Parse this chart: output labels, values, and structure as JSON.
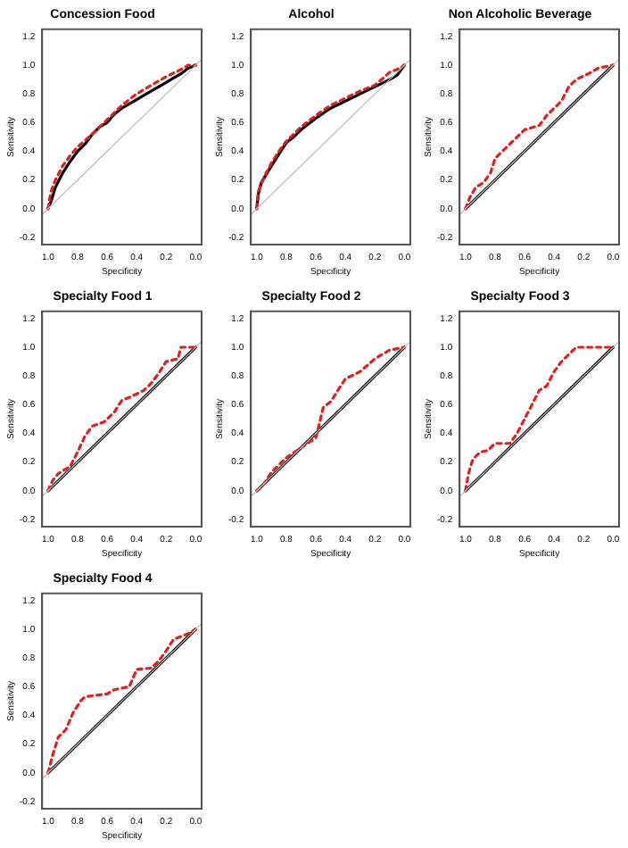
{
  "chart_data": [
    {
      "type": "line",
      "title": "Concession Food",
      "xlabel": "Specificity",
      "ylabel": "Sensitivity",
      "xlim": [
        1.04,
        -0.04
      ],
      "ylim": [
        -0.25,
        1.25
      ],
      "xticks": [
        {
          "value": 1,
          "label": "1.0"
        },
        {
          "value": 0.8,
          "label": "0.8"
        },
        {
          "value": 0.6,
          "label": "0.6"
        },
        {
          "value": 0.4,
          "label": "0.4"
        },
        {
          "value": 0.2,
          "label": "0.2"
        },
        {
          "value": 0,
          "label": "0.0"
        }
      ],
      "yticks": [
        {
          "value": -0.2,
          "label": "-0.2"
        },
        {
          "value": 0,
          "label": "0.0"
        },
        {
          "value": 0.2,
          "label": "0.2"
        },
        {
          "value": 0.4,
          "label": "0.4"
        },
        {
          "value": 0.6,
          "label": "0.6"
        },
        {
          "value": 0.8,
          "label": "0.8"
        },
        {
          "value": 1,
          "label": "1.0"
        },
        {
          "value": 1.2,
          "label": "1.2"
        }
      ],
      "marker": "none",
      "grid": false,
      "legend": false,
      "series": [
        {
          "color": "#bebebe",
          "line_style": "solid",
          "x": [
            1.04,
            -0.04
          ],
          "values": [
            -0.04,
            1.04
          ]
        },
        {
          "color": "#000000",
          "line_style": "solid",
          "x": [
            1,
            0.98,
            0.95,
            0.9,
            0.85,
            0.8,
            0.75,
            0.7,
            0.65,
            0.6,
            0.55,
            0.5,
            0.45,
            0.4,
            0.3,
            0.2,
            0.15,
            0.1,
            0.05,
            0
          ],
          "values": [
            0,
            0.05,
            0.15,
            0.25,
            0.33,
            0.4,
            0.45,
            0.52,
            0.57,
            0.6,
            0.66,
            0.7,
            0.73,
            0.76,
            0.82,
            0.88,
            0.91,
            0.94,
            0.98,
            1
          ]
        },
        {
          "color": "#df2020",
          "line_style": "dashed",
          "x": [
            1,
            0.98,
            0.95,
            0.9,
            0.85,
            0.8,
            0.7,
            0.6,
            0.5,
            0.4,
            0.3,
            0.2,
            0.1,
            0.05,
            0
          ],
          "values": [
            0,
            0.12,
            0.2,
            0.3,
            0.37,
            0.43,
            0.52,
            0.62,
            0.72,
            0.8,
            0.86,
            0.92,
            0.97,
            1,
            1
          ]
        }
      ]
    },
    {
      "type": "line",
      "title": "Alcohol",
      "xlabel": "Specificity",
      "ylabel": "Sensitivity",
      "xlim": [
        1.04,
        -0.04
      ],
      "ylim": [
        -0.25,
        1.25
      ],
      "xticks": [
        {
          "value": 1,
          "label": "1.0"
        },
        {
          "value": 0.8,
          "label": "0.8"
        },
        {
          "value": 0.6,
          "label": "0.6"
        },
        {
          "value": 0.4,
          "label": "0.4"
        },
        {
          "value": 0.2,
          "label": "0.2"
        },
        {
          "value": 0,
          "label": "0.0"
        }
      ],
      "yticks": [
        {
          "value": -0.2,
          "label": "-0.2"
        },
        {
          "value": 0,
          "label": "0.0"
        },
        {
          "value": 0.2,
          "label": "0.2"
        },
        {
          "value": 0.4,
          "label": "0.4"
        },
        {
          "value": 0.6,
          "label": "0.6"
        },
        {
          "value": 0.8,
          "label": "0.8"
        },
        {
          "value": 1,
          "label": "1.0"
        },
        {
          "value": 1.2,
          "label": "1.2"
        }
      ],
      "marker": "none",
      "grid": false,
      "legend": false,
      "series": [
        {
          "color": "#bebebe",
          "line_style": "solid",
          "x": [
            1.04,
            -0.04
          ],
          "values": [
            -0.04,
            1.04
          ]
        },
        {
          "color": "#000000",
          "line_style": "solid",
          "x": [
            1,
            0.99,
            0.97,
            0.93,
            0.9,
            0.85,
            0.8,
            0.75,
            0.7,
            0.6,
            0.5,
            0.4,
            0.3,
            0.2,
            0.1,
            0.05,
            0
          ],
          "values": [
            0,
            0.1,
            0.18,
            0.25,
            0.3,
            0.38,
            0.46,
            0.5,
            0.55,
            0.63,
            0.7,
            0.75,
            0.8,
            0.85,
            0.9,
            0.93,
            1
          ]
        },
        {
          "color": "#df2020",
          "line_style": "dashed",
          "x": [
            1,
            0.99,
            0.95,
            0.9,
            0.85,
            0.8,
            0.7,
            0.6,
            0.5,
            0.4,
            0.3,
            0.2,
            0.1,
            0.05,
            0
          ],
          "values": [
            0,
            0.12,
            0.22,
            0.32,
            0.4,
            0.47,
            0.57,
            0.65,
            0.72,
            0.77,
            0.82,
            0.86,
            0.95,
            0.97,
            1
          ]
        }
      ]
    },
    {
      "type": "line",
      "title": "Non Alcoholic Beverage",
      "xlabel": "Specificity",
      "ylabel": "Sensitivity",
      "xlim": [
        1.04,
        -0.04
      ],
      "ylim": [
        -0.25,
        1.25
      ],
      "xticks": [
        {
          "value": 1,
          "label": "1.0"
        },
        {
          "value": 0.8,
          "label": "0.8"
        },
        {
          "value": 0.6,
          "label": "0.6"
        },
        {
          "value": 0.4,
          "label": "0.4"
        },
        {
          "value": 0.2,
          "label": "0.2"
        },
        {
          "value": 0,
          "label": "0.0"
        }
      ],
      "yticks": [
        {
          "value": -0.2,
          "label": "-0.2"
        },
        {
          "value": 0,
          "label": "0.0"
        },
        {
          "value": 0.2,
          "label": "0.2"
        },
        {
          "value": 0.4,
          "label": "0.4"
        },
        {
          "value": 0.6,
          "label": "0.6"
        },
        {
          "value": 0.8,
          "label": "0.8"
        },
        {
          "value": 1,
          "label": "1.0"
        },
        {
          "value": 1.2,
          "label": "1.2"
        }
      ],
      "marker": "none",
      "grid": false,
      "legend": false,
      "series": [
        {
          "color": "#bebebe",
          "line_style": "solid",
          "x": [
            1.04,
            -0.04
          ],
          "values": [
            -0.04,
            1.04
          ]
        },
        {
          "color": "#000000",
          "line_style": "solid",
          "x": [
            1,
            0
          ],
          "values": [
            0,
            1
          ]
        },
        {
          "color": "#df2020",
          "line_style": "dashed",
          "x": [
            1,
            0.97,
            0.93,
            0.88,
            0.83,
            0.8,
            0.75,
            0.7,
            0.65,
            0.6,
            0.5,
            0.45,
            0.4,
            0.35,
            0.3,
            0.25,
            0.15,
            0.1,
            0
          ],
          "values": [
            0,
            0.08,
            0.15,
            0.18,
            0.25,
            0.35,
            0.4,
            0.45,
            0.5,
            0.55,
            0.58,
            0.65,
            0.7,
            0.75,
            0.85,
            0.9,
            0.95,
            0.98,
            1
          ]
        }
      ]
    },
    {
      "type": "line",
      "title": "Specialty Food 1",
      "xlabel": "Specificity",
      "ylabel": "Sensitivity",
      "xlim": [
        1.04,
        -0.04
      ],
      "ylim": [
        -0.25,
        1.25
      ],
      "xticks": [
        {
          "value": 1,
          "label": "1.0"
        },
        {
          "value": 0.8,
          "label": "0.8"
        },
        {
          "value": 0.6,
          "label": "0.6"
        },
        {
          "value": 0.4,
          "label": "0.4"
        },
        {
          "value": 0.2,
          "label": "0.2"
        },
        {
          "value": 0,
          "label": "0.0"
        }
      ],
      "yticks": [
        {
          "value": -0.2,
          "label": "-0.2"
        },
        {
          "value": 0,
          "label": "0.0"
        },
        {
          "value": 0.2,
          "label": "0.2"
        },
        {
          "value": 0.4,
          "label": "0.4"
        },
        {
          "value": 0.6,
          "label": "0.6"
        },
        {
          "value": 0.8,
          "label": "0.8"
        },
        {
          "value": 1,
          "label": "1.0"
        },
        {
          "value": 1.2,
          "label": "1.2"
        }
      ],
      "marker": "none",
      "grid": false,
      "legend": false,
      "series": [
        {
          "color": "#bebebe",
          "line_style": "solid",
          "x": [
            1.04,
            -0.04
          ],
          "values": [
            -0.04,
            1.04
          ]
        },
        {
          "color": "#000000",
          "line_style": "solid",
          "x": [
            1,
            0
          ],
          "values": [
            0,
            1
          ]
        },
        {
          "color": "#df2020",
          "line_style": "dashed",
          "x": [
            1,
            0.97,
            0.93,
            0.85,
            0.8,
            0.75,
            0.7,
            0.62,
            0.55,
            0.5,
            0.45,
            0.35,
            0.3,
            0.25,
            0.2,
            0.12,
            0.1,
            0
          ],
          "values": [
            0,
            0.07,
            0.12,
            0.17,
            0.27,
            0.38,
            0.45,
            0.48,
            0.55,
            0.63,
            0.65,
            0.7,
            0.75,
            0.82,
            0.9,
            0.92,
            1,
            1
          ]
        }
      ]
    },
    {
      "type": "line",
      "title": "Specialty Food 2",
      "xlabel": "Specificity",
      "ylabel": "Sensitivity",
      "xlim": [
        1.04,
        -0.04
      ],
      "ylim": [
        -0.25,
        1.25
      ],
      "xticks": [
        {
          "value": 1,
          "label": "1.0"
        },
        {
          "value": 0.8,
          "label": "0.8"
        },
        {
          "value": 0.6,
          "label": "0.6"
        },
        {
          "value": 0.4,
          "label": "0.4"
        },
        {
          "value": 0.2,
          "label": "0.2"
        },
        {
          "value": 0,
          "label": "0.0"
        }
      ],
      "yticks": [
        {
          "value": -0.2,
          "label": "-0.2"
        },
        {
          "value": 0,
          "label": "0.0"
        },
        {
          "value": 0.2,
          "label": "0.2"
        },
        {
          "value": 0.4,
          "label": "0.4"
        },
        {
          "value": 0.6,
          "label": "0.6"
        },
        {
          "value": 0.8,
          "label": "0.8"
        },
        {
          "value": 1,
          "label": "1.0"
        },
        {
          "value": 1.2,
          "label": "1.2"
        }
      ],
      "marker": "none",
      "grid": false,
      "legend": false,
      "series": [
        {
          "color": "#bebebe",
          "line_style": "solid",
          "x": [
            1.04,
            -0.04
          ],
          "values": [
            -0.04,
            1.04
          ]
        },
        {
          "color": "#000000",
          "line_style": "solid",
          "x": [
            1,
            0
          ],
          "values": [
            0,
            1
          ]
        },
        {
          "color": "#df2020",
          "line_style": "dashed",
          "x": [
            1,
            0.95,
            0.9,
            0.85,
            0.8,
            0.7,
            0.6,
            0.58,
            0.55,
            0.5,
            0.45,
            0.4,
            0.3,
            0.2,
            0.15,
            0.1,
            0
          ],
          "values": [
            0,
            0.05,
            0.13,
            0.18,
            0.23,
            0.3,
            0.37,
            0.45,
            0.58,
            0.62,
            0.7,
            0.78,
            0.83,
            0.92,
            0.95,
            0.98,
            1
          ]
        }
      ]
    },
    {
      "type": "line",
      "title": "Specialty Food 3",
      "xlabel": "Specificity",
      "ylabel": "Sensitivity",
      "xlim": [
        1.04,
        -0.04
      ],
      "ylim": [
        -0.25,
        1.25
      ],
      "xticks": [
        {
          "value": 1,
          "label": "1.0"
        },
        {
          "value": 0.8,
          "label": "0.8"
        },
        {
          "value": 0.6,
          "label": "0.6"
        },
        {
          "value": 0.4,
          "label": "0.4"
        },
        {
          "value": 0.2,
          "label": "0.2"
        },
        {
          "value": 0,
          "label": "0.0"
        }
      ],
      "yticks": [
        {
          "value": -0.2,
          "label": "-0.2"
        },
        {
          "value": 0,
          "label": "0.0"
        },
        {
          "value": 0.2,
          "label": "0.2"
        },
        {
          "value": 0.4,
          "label": "0.4"
        },
        {
          "value": 0.6,
          "label": "0.6"
        },
        {
          "value": 0.8,
          "label": "0.8"
        },
        {
          "value": 1,
          "label": "1.0"
        },
        {
          "value": 1.2,
          "label": "1.2"
        }
      ],
      "marker": "none",
      "grid": false,
      "legend": false,
      "series": [
        {
          "color": "#bebebe",
          "line_style": "solid",
          "x": [
            1.04,
            -0.04
          ],
          "values": [
            -0.04,
            1.04
          ]
        },
        {
          "color": "#000000",
          "line_style": "solid",
          "x": [
            1,
            0
          ],
          "values": [
            0,
            1
          ]
        },
        {
          "color": "#df2020",
          "line_style": "dashed",
          "x": [
            1,
            0.98,
            0.95,
            0.9,
            0.85,
            0.8,
            0.7,
            0.65,
            0.6,
            0.55,
            0.5,
            0.45,
            0.4,
            0.35,
            0.3,
            0.25,
            0
          ],
          "values": [
            0,
            0.12,
            0.22,
            0.27,
            0.28,
            0.33,
            0.33,
            0.4,
            0.5,
            0.6,
            0.7,
            0.73,
            0.83,
            0.9,
            0.95,
            1,
            1
          ]
        }
      ]
    },
    {
      "type": "line",
      "title": "Specialty Food 4",
      "xlabel": "Specificity",
      "ylabel": "Sensitivity",
      "xlim": [
        1.04,
        -0.04
      ],
      "ylim": [
        -0.25,
        1.25
      ],
      "xticks": [
        {
          "value": 1,
          "label": "1.0"
        },
        {
          "value": 0.8,
          "label": "0.8"
        },
        {
          "value": 0.6,
          "label": "0.6"
        },
        {
          "value": 0.4,
          "label": "0.4"
        },
        {
          "value": 0.2,
          "label": "0.2"
        },
        {
          "value": 0,
          "label": "0.0"
        }
      ],
      "yticks": [
        {
          "value": -0.2,
          "label": "-0.2"
        },
        {
          "value": 0,
          "label": "0.0"
        },
        {
          "value": 0.2,
          "label": "0.2"
        },
        {
          "value": 0.4,
          "label": "0.4"
        },
        {
          "value": 0.6,
          "label": "0.6"
        },
        {
          "value": 0.8,
          "label": "0.8"
        },
        {
          "value": 1,
          "label": "1.0"
        },
        {
          "value": 1.2,
          "label": "1.2"
        }
      ],
      "marker": "none",
      "grid": false,
      "legend": false,
      "series": [
        {
          "color": "#bebebe",
          "line_style": "solid",
          "x": [
            1.04,
            -0.04
          ],
          "values": [
            -0.04,
            1.04
          ]
        },
        {
          "color": "#000000",
          "line_style": "solid",
          "x": [
            1,
            0
          ],
          "values": [
            0,
            1
          ]
        },
        {
          "color": "#df2020",
          "line_style": "dashed",
          "x": [
            1,
            0.97,
            0.93,
            0.88,
            0.83,
            0.78,
            0.75,
            0.6,
            0.55,
            0.45,
            0.4,
            0.3,
            0.25,
            0.2,
            0.15,
            0.1,
            0.05,
            0
          ],
          "values": [
            0,
            0.12,
            0.25,
            0.3,
            0.42,
            0.5,
            0.53,
            0.55,
            0.58,
            0.6,
            0.72,
            0.73,
            0.78,
            0.85,
            0.93,
            0.95,
            0.97,
            1
          ]
        }
      ]
    }
  ]
}
